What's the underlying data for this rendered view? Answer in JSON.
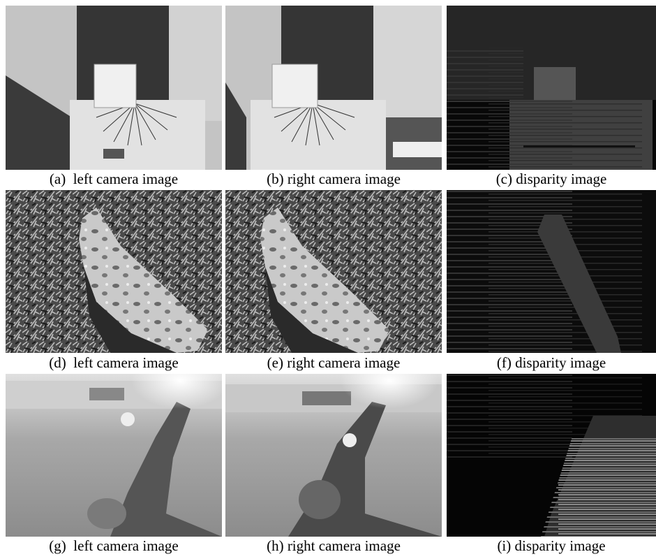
{
  "figure": {
    "panels": [
      {
        "caption": "(a)  left camera image"
      },
      {
        "caption": "(b) right camera image"
      },
      {
        "caption": "(c) disparity image"
      },
      {
        "caption": "(d)  left camera image"
      },
      {
        "caption": "(e) right camera image"
      },
      {
        "caption": "(f) disparity image"
      },
      {
        "caption": "(g)  left camera image"
      },
      {
        "caption": "(h) right camera image"
      },
      {
        "caption": "(i) disparity image"
      }
    ]
  }
}
